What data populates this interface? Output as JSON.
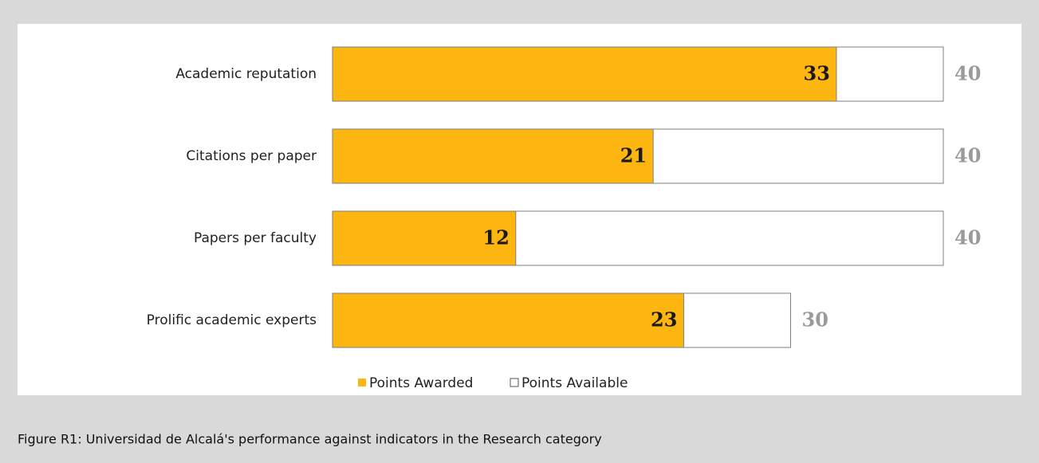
{
  "chart_data": {
    "type": "bar",
    "orientation": "horizontal",
    "categories": [
      "Academic reputation",
      "Citations per paper",
      "Papers per faculty",
      "Prolific academic experts"
    ],
    "series": [
      {
        "name": "Points Awarded",
        "color": "#fdb50f",
        "values": [
          33,
          21,
          12,
          23
        ]
      },
      {
        "name": "Points Available",
        "color": "#ffffff",
        "values": [
          40,
          40,
          40,
          30
        ]
      }
    ],
    "xlim": [
      0,
      40
    ],
    "legend": "bottom",
    "caption": "Figure R1: Universidad de Alcalá's performance against indicators in the Research category"
  }
}
